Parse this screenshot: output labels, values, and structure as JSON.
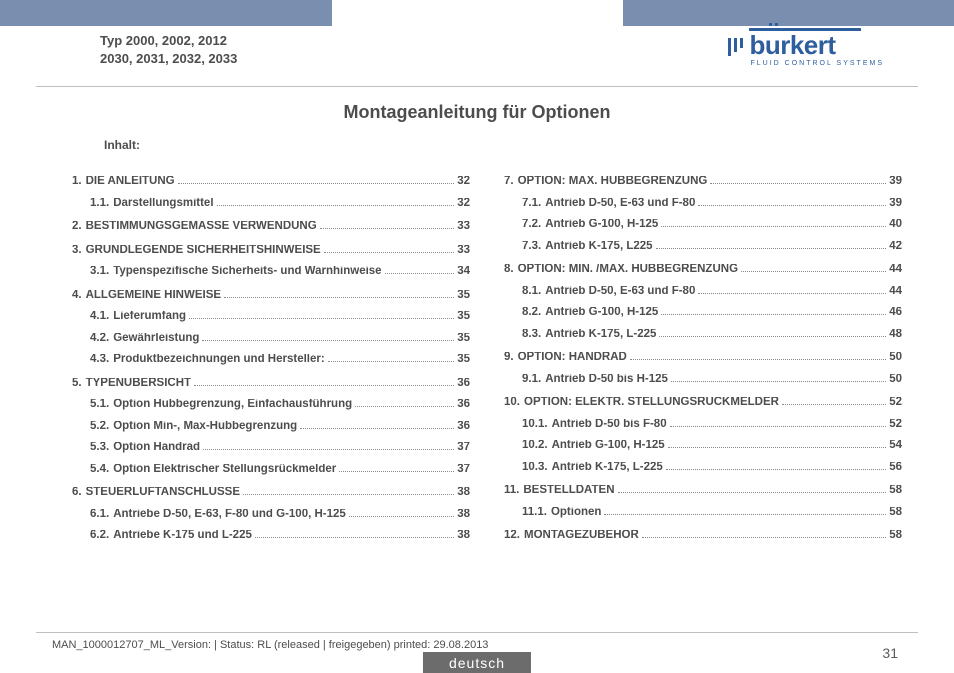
{
  "header": {
    "typ_line1": "Typ 2000, 2002, 2012",
    "typ_line2": "2030, 2031, 2032, 2033",
    "logo_word": "burkert",
    "logo_sub": "FLUID CONTROL SYSTEMS"
  },
  "title": "Montageanleitung für Optionen",
  "inhalt_label": "Inhalt:",
  "toc_left": [
    {
      "lvl": 1,
      "num": "1.",
      "text": "DIE ANLEITUNG",
      "page": "32"
    },
    {
      "lvl": 2,
      "num": "1.1.",
      "text": "Darstellungsmittel",
      "page": "32"
    },
    {
      "lvl": 1,
      "num": "2.",
      "text": "BESTIMMUNGSGEMÄSSE VERWENDUNG",
      "page": "33"
    },
    {
      "lvl": 1,
      "num": "3.",
      "text": "GRUNDLEGENDE SICHERHEITSHINWEISE",
      "page": "33"
    },
    {
      "lvl": 2,
      "num": "3.1.",
      "text": "Typenspezifische Sicherheits- und Warnhinweise",
      "page": "34"
    },
    {
      "lvl": 1,
      "num": "4.",
      "text": "ALLGEMEINE HINWEISE",
      "page": "35"
    },
    {
      "lvl": 2,
      "num": "4.1.",
      "text": "Lieferumfang",
      "page": "35"
    },
    {
      "lvl": 2,
      "num": "4.2.",
      "text": "Gewährleistung",
      "page": "35"
    },
    {
      "lvl": 2,
      "num": "4.3.",
      "text": "Produktbezeichnungen und Hersteller:",
      "page": "35"
    },
    {
      "lvl": 1,
      "num": "5.",
      "text": "TYPENÜBERSICHT",
      "page": "36"
    },
    {
      "lvl": 2,
      "num": "5.1.",
      "text": "Option Hubbegrenzung, Einfachausführung",
      "page": "36"
    },
    {
      "lvl": 2,
      "num": "5.2.",
      "text": "Option Min-, Max-Hubbegrenzung",
      "page": "36"
    },
    {
      "lvl": 2,
      "num": "5.3.",
      "text": "Option Handrad",
      "page": "37"
    },
    {
      "lvl": 2,
      "num": "5.4.",
      "text": "Option Elektrischer Stellungsrückmelder",
      "page": "37"
    },
    {
      "lvl": 1,
      "num": "6.",
      "text": "STEUERLUFTANSCHLÜSSE",
      "page": "38"
    },
    {
      "lvl": 2,
      "num": "6.1.",
      "text": "Antriebe D-50, E-63, F-80 und G-100, H-125",
      "page": "38"
    },
    {
      "lvl": 2,
      "num": "6.2.",
      "text": "Antriebe K-175 und L-225",
      "page": "38"
    }
  ],
  "toc_right": [
    {
      "lvl": 1,
      "num": "7.",
      "text": "OPTION: MAX. HUBBEGRENZUNG",
      "page": "39"
    },
    {
      "lvl": 2,
      "num": "7.1.",
      "text": "Antrieb D-50, E-63 und F-80",
      "page": "39"
    },
    {
      "lvl": 2,
      "num": "7.2.",
      "text": "Antrieb G-100, H-125",
      "page": "40"
    },
    {
      "lvl": 2,
      "num": "7.3.",
      "text": "Antrieb K-175, L225",
      "page": "42"
    },
    {
      "lvl": 1,
      "num": "8.",
      "text": "OPTION: MIN. /MAX. HUBBEGRENZUNG",
      "page": "44"
    },
    {
      "lvl": 2,
      "num": "8.1.",
      "text": "Antrieb D-50, E-63 und F-80",
      "page": "44"
    },
    {
      "lvl": 2,
      "num": "8.2.",
      "text": "Antrieb G-100, H-125",
      "page": "46"
    },
    {
      "lvl": 2,
      "num": "8.3.",
      "text": "Antrieb K-175, L-225",
      "page": "48"
    },
    {
      "lvl": 1,
      "num": "9.",
      "text": "OPTION: HANDRAD",
      "page": "50"
    },
    {
      "lvl": 2,
      "num": "9.1.",
      "text": "Antrieb D-50 bis H-125",
      "page": "50"
    },
    {
      "lvl": 1,
      "num": "10.",
      "text": "OPTION: ELEKTR. STELLUNGSRÜCKMELDER",
      "page": "52"
    },
    {
      "lvl": 2,
      "num": "10.1.",
      "text": "Antrieb D-50 bis F-80",
      "page": "52"
    },
    {
      "lvl": 2,
      "num": "10.2.",
      "text": "Antrieb G-100, H-125",
      "page": "54"
    },
    {
      "lvl": 2,
      "num": "10.3.",
      "text": "Antrieb K-175, L-225",
      "page": "56"
    },
    {
      "lvl": 1,
      "num": "11.",
      "text": "BESTELLDATEN ",
      "page": "58"
    },
    {
      "lvl": 2,
      "num": "11.1.",
      "text": "Optionen",
      "page": "58"
    },
    {
      "lvl": 1,
      "num": "12.",
      "text": "MONTAGEZUBEHÖR",
      "page": "58"
    }
  ],
  "footer": {
    "note": "MAN_1000012707_ML_Version: | Status: RL (released | freigegeben)  printed: 29.08.2013",
    "page_number": "31",
    "language_tab": "deutsch"
  },
  "colors": {
    "tab_blue": "#7a8fb0",
    "logo_blue": "#2f5e9e",
    "text_grey": "#4d4d4d",
    "rule_grey": "#bfbfbf",
    "lang_bg": "#6c6c6c"
  }
}
